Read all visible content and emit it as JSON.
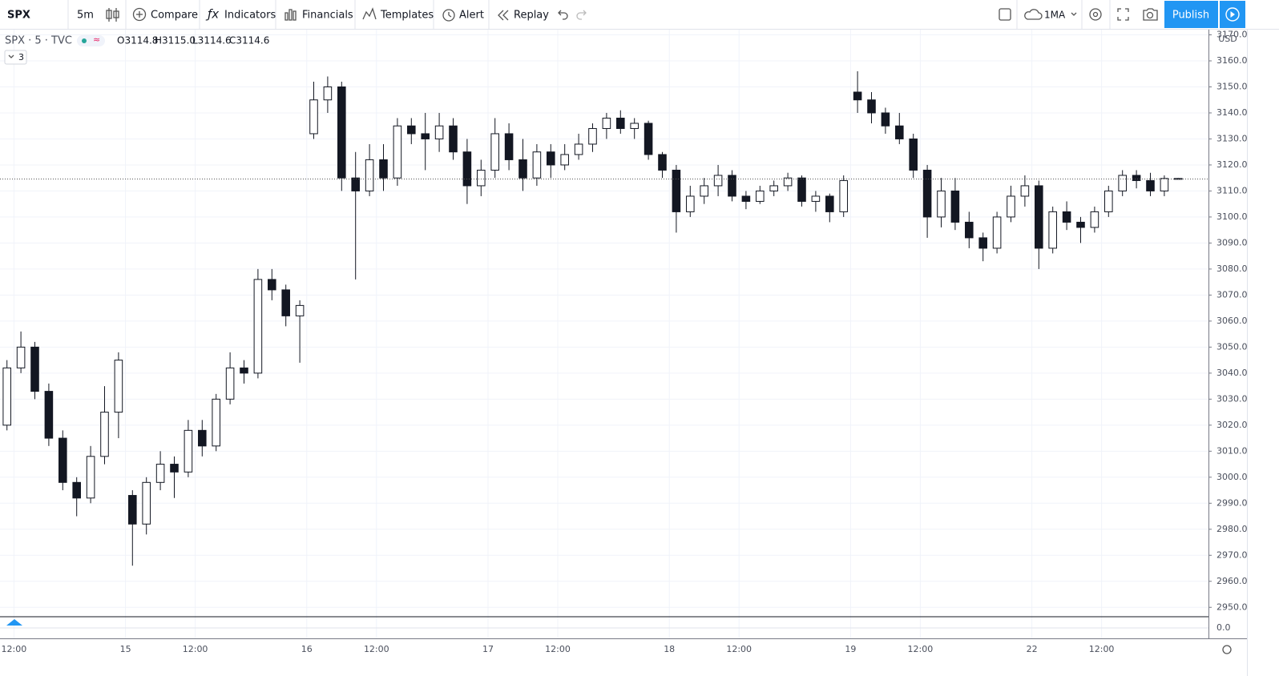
{
  "toolbar": {
    "symbol": "SPX",
    "interval": "5m",
    "compare": "Compare",
    "indicators": "Indicators",
    "financials": "Financials",
    "templates": "Templates",
    "alert": "Alert",
    "replay": "Replay",
    "layout": "1MA",
    "publish": "Publish"
  },
  "legend": {
    "series": "SPX · 5 · TVC",
    "ohlc": [
      "O3114.8",
      "H3115.0",
      "L3114.6",
      "C3114.6"
    ],
    "collapsed_count": "3"
  },
  "chart_data": {
    "type": "candlestick",
    "currency": "USD",
    "up_color": "#ffffff",
    "down_color": "#131722",
    "wick_color": "#131722",
    "grid": true,
    "xlim": [
      -54,
      466
    ],
    "xticks": [
      {
        "value": -48,
        "label": "12:00"
      },
      {
        "value": 0,
        "label": "15"
      },
      {
        "value": 30,
        "label": "12:00"
      },
      {
        "value": 78,
        "label": "16"
      },
      {
        "value": 108,
        "label": "12:00"
      },
      {
        "value": 156,
        "label": "17"
      },
      {
        "value": 186,
        "label": "12:00"
      },
      {
        "value": 234,
        "label": "18"
      },
      {
        "value": 264,
        "label": "12:00"
      },
      {
        "value": 312,
        "label": "19"
      },
      {
        "value": 342,
        "label": "12:00"
      },
      {
        "value": 390,
        "label": "22"
      },
      {
        "value": 420,
        "label": "12:00"
      }
    ],
    "ylim": [
      2947,
      3172
    ],
    "yticks": [
      {
        "value": 2950,
        "label": "2950.0"
      },
      {
        "value": 2960,
        "label": "2960.0"
      },
      {
        "value": 2970,
        "label": "2970.0"
      },
      {
        "value": 2980,
        "label": "2980.0"
      },
      {
        "value": 2990,
        "label": "2990.0"
      },
      {
        "value": 3000,
        "label": "3000.0"
      },
      {
        "value": 3010,
        "label": "3010.0"
      },
      {
        "value": 3020,
        "label": "3020.0"
      },
      {
        "value": 3030,
        "label": "3030.0"
      },
      {
        "value": 3040,
        "label": "3040.0"
      },
      {
        "value": 3050,
        "label": "3050.0"
      },
      {
        "value": 3060,
        "label": "3060.0"
      },
      {
        "value": 3070,
        "label": "3070.0"
      },
      {
        "value": 3080,
        "label": "3080.0"
      },
      {
        "value": 3090,
        "label": "3090.0"
      },
      {
        "value": 3100,
        "label": "3100.0"
      },
      {
        "value": 3110,
        "label": "3110.0"
      },
      {
        "value": 3120,
        "label": "3120.0"
      },
      {
        "value": 3130,
        "label": "3130.0"
      },
      {
        "value": 3140,
        "label": "3140.0"
      },
      {
        "value": 3150,
        "label": "3150.0"
      },
      {
        "value": 3160,
        "label": "3160.0"
      },
      {
        "value": 3170,
        "label": "3170.0"
      }
    ],
    "candles": {
      "x": [
        -54,
        -48,
        -42,
        -36,
        -30,
        -24,
        -18,
        -12,
        -6,
        0,
        6,
        12,
        18,
        24,
        30,
        36,
        42,
        48,
        54,
        60,
        66,
        72,
        78,
        84,
        90,
        96,
        102,
        108,
        114,
        120,
        126,
        132,
        138,
        144,
        150,
        156,
        162,
        168,
        174,
        180,
        186,
        192,
        198,
        204,
        210,
        216,
        222,
        228,
        234,
        240,
        246,
        252,
        258,
        264,
        270,
        276,
        282,
        288,
        294,
        300,
        306,
        312,
        318,
        324,
        330,
        336,
        342,
        348,
        354,
        360,
        366,
        372,
        378,
        384,
        390,
        396,
        402,
        408,
        414,
        420,
        426,
        432,
        438,
        444,
        450
      ],
      "open": [
        3020,
        3042,
        3050,
        3033,
        3015,
        2998,
        2992,
        3008,
        3025,
        2993,
        2982,
        2998,
        3005,
        3002,
        3018,
        3012,
        3030,
        3042,
        3040,
        3076,
        3072,
        3062,
        3132,
        3145,
        3150,
        3115,
        3110,
        3122,
        3115,
        3135,
        3132,
        3130,
        3135,
        3125,
        3112,
        3118,
        3132,
        3122,
        3115,
        3125,
        3120,
        3124,
        3128,
        3134,
        3138,
        3134,
        3136,
        3124,
        3118,
        3102,
        3108,
        3112,
        3116,
        3108,
        3106,
        3110,
        3112,
        3115,
        3106,
        3108,
        3102,
        3148,
        3145,
        3140,
        3135,
        3130,
        3118,
        3100,
        3110,
        3098,
        3092,
        3088,
        3100,
        3108,
        3112,
        3088,
        3102,
        3098,
        3096,
        3102,
        3110,
        3116,
        3114,
        3110,
        3114.8
      ],
      "high": [
        3045,
        3056,
        3052,
        3036,
        3018,
        3000,
        3012,
        3035,
        3048,
        2995,
        3000,
        3010,
        3008,
        3022,
        3022,
        3032,
        3048,
        3045,
        3080,
        3080,
        3074,
        3068,
        3152,
        3154,
        3152,
        3125,
        3128,
        3128,
        3138,
        3138,
        3140,
        3140,
        3138,
        3130,
        3122,
        3138,
        3136,
        3130,
        3128,
        3128,
        3128,
        3132,
        3136,
        3140,
        3141,
        3138,
        3137,
        3125,
        3120,
        3112,
        3115,
        3120,
        3118,
        3110,
        3112,
        3114,
        3117,
        3116,
        3110,
        3109,
        3116,
        3156,
        3148,
        3142,
        3140,
        3132,
        3120,
        3115,
        3115,
        3102,
        3094,
        3102,
        3112,
        3116,
        3114,
        3104,
        3106,
        3100,
        3104,
        3112,
        3118,
        3118,
        3117,
        3116,
        3115
      ],
      "low": [
        3018,
        3040,
        3030,
        3012,
        2995,
        2985,
        2990,
        3005,
        3015,
        2966,
        2978,
        2995,
        2992,
        3000,
        3008,
        3010,
        3028,
        3036,
        3038,
        3068,
        3058,
        3044,
        3130,
        3140,
        3110,
        3076,
        3108,
        3110,
        3112,
        3128,
        3118,
        3125,
        3122,
        3105,
        3108,
        3115,
        3118,
        3110,
        3112,
        3115,
        3118,
        3122,
        3125,
        3130,
        3132,
        3130,
        3122,
        3115,
        3094,
        3100,
        3105,
        3108,
        3106,
        3103,
        3105,
        3108,
        3110,
        3104,
        3102,
        3098,
        3100,
        3140,
        3136,
        3132,
        3128,
        3115,
        3092,
        3096,
        3095,
        3088,
        3083,
        3086,
        3098,
        3104,
        3080,
        3086,
        3095,
        3090,
        3094,
        3100,
        3108,
        3111,
        3108,
        3108,
        3114.6
      ],
      "close": [
        3042,
        3050,
        3033,
        3015,
        2998,
        2992,
        3008,
        3025,
        3045,
        2982,
        2998,
        3005,
        3002,
        3018,
        3012,
        3030,
        3042,
        3040,
        3076,
        3072,
        3062,
        3066,
        3145,
        3150,
        3115,
        3110,
        3122,
        3115,
        3135,
        3132,
        3130,
        3135,
        3125,
        3112,
        3118,
        3132,
        3122,
        3115,
        3125,
        3120,
        3124,
        3128,
        3134,
        3138,
        3134,
        3136,
        3124,
        3118,
        3102,
        3108,
        3112,
        3116,
        3108,
        3106,
        3110,
        3112,
        3115,
        3106,
        3108,
        3102,
        3114,
        3145,
        3140,
        3135,
        3130,
        3118,
        3100,
        3110,
        3098,
        3092,
        3088,
        3100,
        3108,
        3112,
        3088,
        3102,
        3098,
        3096,
        3102,
        3110,
        3116,
        3114,
        3110,
        3114.8,
        3114.6
      ]
    },
    "indicator": {
      "ylim": [
        -3,
        3
      ],
      "yticks": [
        {
          "value": 0,
          "label": "0.0"
        }
      ]
    }
  }
}
